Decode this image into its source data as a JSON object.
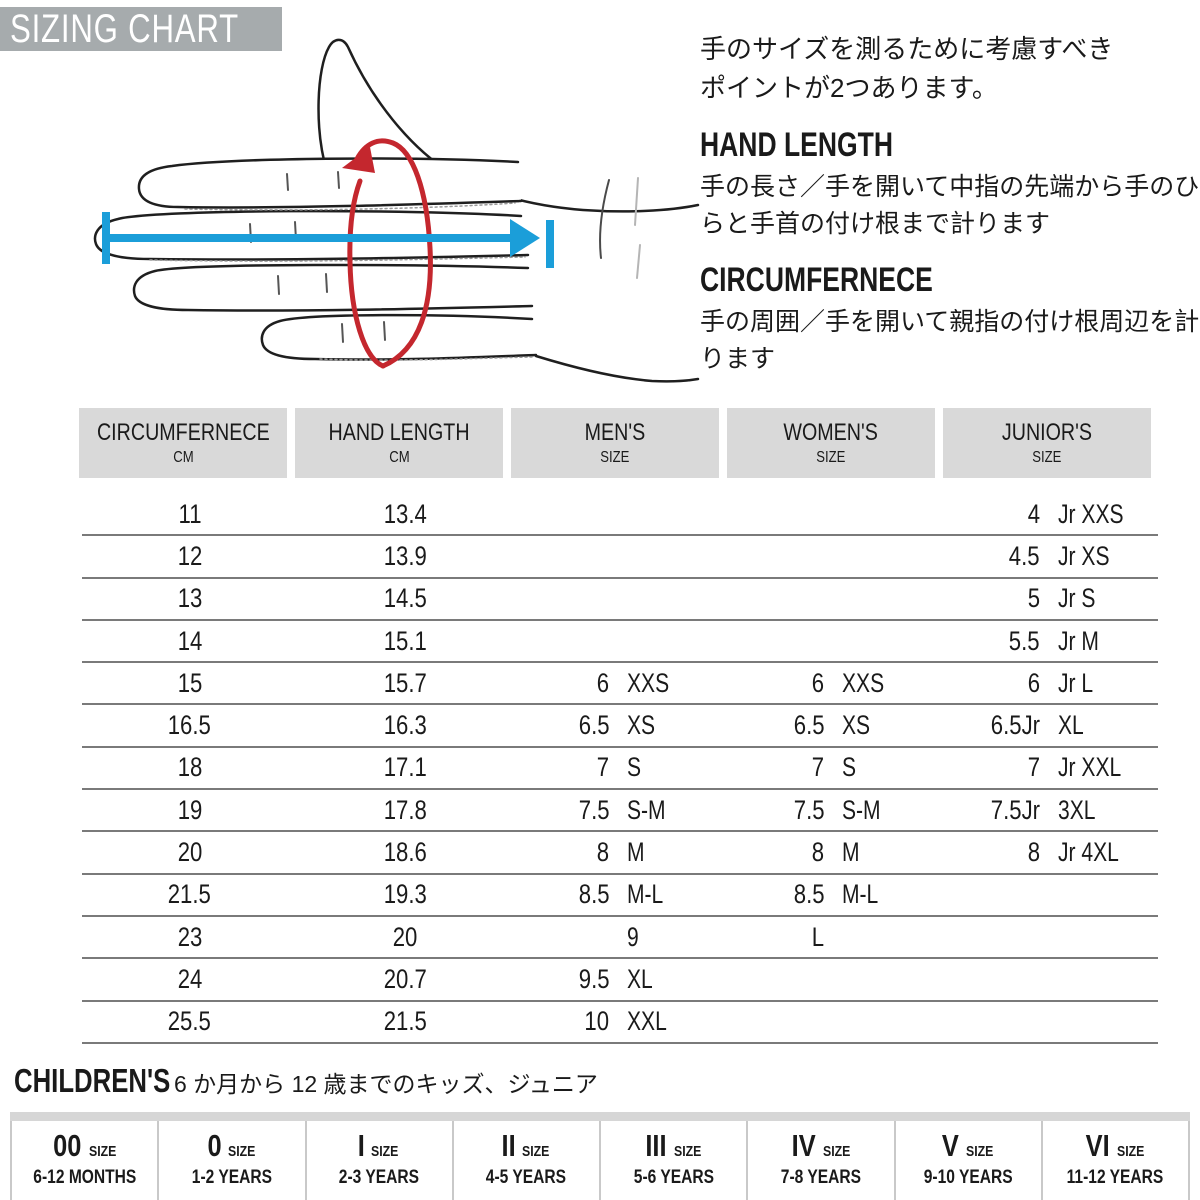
{
  "title": "SIZING CHART",
  "intro": {
    "line1": "手のサイズを測るために考慮すべき",
    "line2": "ポイントが2つあります。"
  },
  "sections": [
    {
      "heading": "HAND LENGTH",
      "desc": "手の長さ／手を開いて中指の先端から手のひらと手首の付け根まで計ります"
    },
    {
      "heading": "CIRCUMFERNECE",
      "desc": "手の周囲／手を開いて親指の付け根周辺を計ります"
    }
  ],
  "diagram": {
    "hand_length_arrow": "hand-length-measure-arrow",
    "circumference_arrow": "circumference-measure-ellipse"
  },
  "colors": {
    "title_bg": "#A6ABAD",
    "header_bg": "#D9D9D9",
    "arrow_blue": "#1B9ED9",
    "arrow_red": "#C4272E",
    "row_line": "#7a7a7a",
    "kids_divider": "#C9C9C9"
  },
  "table": {
    "headers": [
      {
        "title": "CIRCUMFERNECE",
        "sub": "CM"
      },
      {
        "title": "HAND LENGTH",
        "sub": "CM"
      },
      {
        "title": "MEN'S",
        "sub": "SIZE"
      },
      {
        "title": "WOMEN'S",
        "sub": "SIZE"
      },
      {
        "title": "JUNIOR'S",
        "sub": "SIZE"
      }
    ],
    "rows": [
      [
        "11",
        "13.4",
        "",
        "",
        "",
        "",
        "4",
        "Jr XXS"
      ],
      [
        "12",
        "13.9",
        "",
        "",
        "",
        "",
        "4.5",
        "Jr XS"
      ],
      [
        "13",
        "14.5",
        "",
        "",
        "",
        "",
        "5",
        "Jr S"
      ],
      [
        "14",
        "15.1",
        "",
        "",
        "",
        "",
        "5.5",
        "Jr M"
      ],
      [
        "15",
        "15.7",
        "6",
        "XXS",
        "6",
        "XXS",
        "6",
        "Jr L"
      ],
      [
        "16.5",
        "16.3",
        "6.5",
        "XS",
        "6.5",
        "XS",
        "6.5Jr",
        "XL"
      ],
      [
        "18",
        "17.1",
        "7",
        "S",
        "7",
        "S",
        "7",
        "Jr XXL"
      ],
      [
        "19",
        "17.8",
        "7.5",
        "S-M",
        "7.5",
        "S-M",
        "7.5Jr",
        "3XL"
      ],
      [
        "20",
        "18.6",
        "8",
        "M",
        "8",
        "M",
        "8",
        "Jr 4XL"
      ],
      [
        "21.5",
        "19.3",
        "8.5",
        "M-L",
        "8.5",
        "M-L",
        "",
        ""
      ],
      [
        "23",
        "20",
        "",
        "9",
        "L",
        "",
        "",
        ""
      ],
      [
        "24",
        "20.7",
        "9.5",
        "XL",
        "",
        "",
        "",
        ""
      ],
      [
        "25.5",
        "21.5",
        "10",
        "XXL",
        "",
        "",
        "",
        ""
      ]
    ]
  },
  "children": {
    "heading": "CHILDREN'S",
    "note": "6 か月から 12 歳までのキッズ、ジュニア",
    "size_word": "SIZE",
    "sizes": [
      {
        "size": "00",
        "age": "6-12 MONTHS"
      },
      {
        "size": "0",
        "age": "1-2 YEARS"
      },
      {
        "size": "I",
        "age": "2-3 YEARS"
      },
      {
        "size": "II",
        "age": "4-5 YEARS"
      },
      {
        "size": "III",
        "age": "5-6 YEARS"
      },
      {
        "size": "IV",
        "age": "7-8 YEARS"
      },
      {
        "size": "V",
        "age": "9-10 YEARS"
      },
      {
        "size": "VI",
        "age": "11-12 YEARS"
      }
    ]
  }
}
